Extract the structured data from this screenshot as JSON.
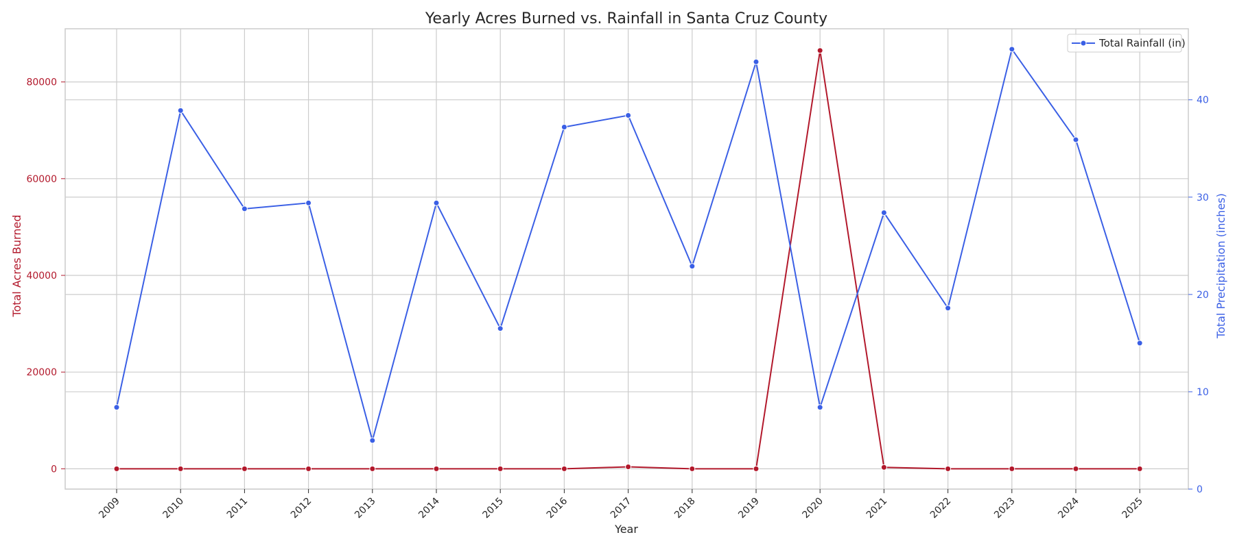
{
  "chart_data": {
    "type": "line",
    "title": "Yearly Acres Burned vs. Rainfall in Santa Cruz County",
    "xlabel": "Year",
    "x": [
      "2009",
      "2010",
      "2011",
      "2012",
      "2013",
      "2014",
      "2015",
      "2016",
      "2017",
      "2018",
      "2019",
      "2020",
      "2021",
      "2022",
      "2023",
      "2024",
      "2025"
    ],
    "y_left": {
      "label": "Total Acres Burned",
      "ticks": [
        "0",
        "20000",
        "40000",
        "60000",
        "80000"
      ],
      "ylim": [
        -4200,
        91000
      ],
      "color": "#b2182b"
    },
    "y_right": {
      "label": "Total Precipitation (inches)",
      "ticks": [
        "0",
        "10",
        "20",
        "30",
        "40"
      ],
      "ylim": [
        0,
        47.3
      ],
      "color": "#3a5fe5"
    },
    "series": [
      {
        "axis": "left",
        "color": "#b2182b",
        "values": [
          0,
          0,
          0,
          0,
          0,
          0,
          0,
          0,
          400,
          0,
          0,
          86500,
          300,
          0,
          0,
          0,
          0
        ]
      },
      {
        "name": "Total Rainfall (in)",
        "axis": "right",
        "color": "#3a5fe5",
        "values": [
          8.4,
          38.9,
          28.8,
          29.4,
          5.0,
          29.4,
          16.5,
          37.2,
          38.4,
          22.9,
          43.9,
          8.4,
          28.4,
          18.6,
          45.2,
          35.9,
          15.0
        ]
      }
    ],
    "grid": true,
    "legend": "top-right"
  }
}
